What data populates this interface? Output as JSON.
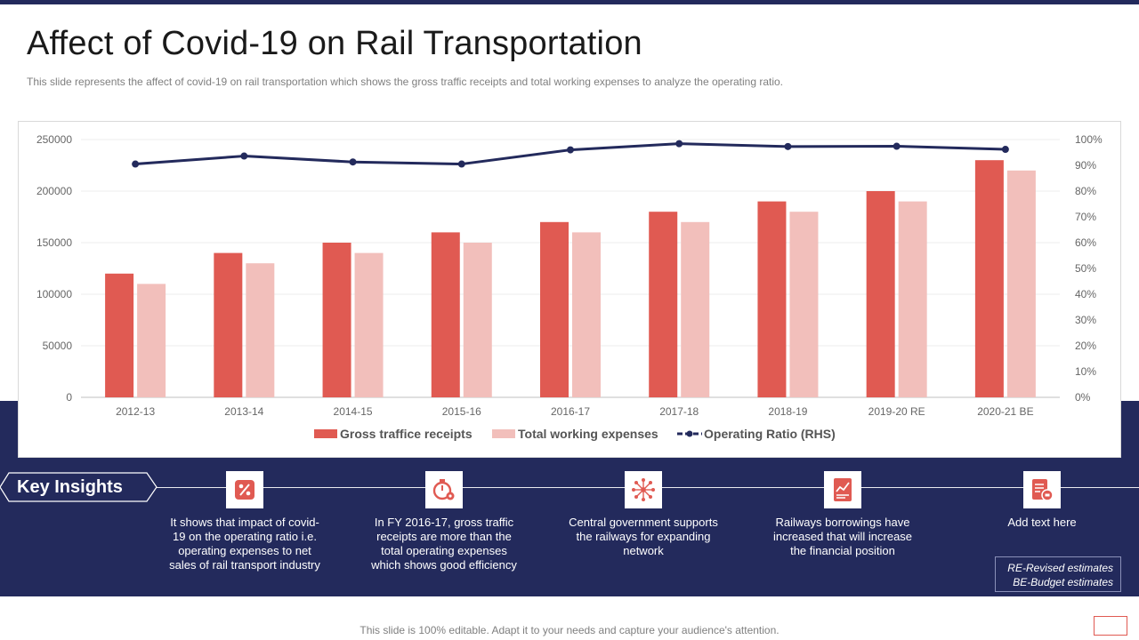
{
  "title": "Affect of Covid-19 on Rail Transportation",
  "subtitle": "This slide represents the affect of covid-19  on rail transportation which shows the gross traffic receipts and total working expenses to analyze the operating ratio.",
  "colors": {
    "navy": "#232a5c",
    "gross": "#e05a52",
    "expenses": "#f2bfbb",
    "ratio": "#232a5c"
  },
  "chart_data": {
    "type": "bar",
    "categories": [
      "2012-13",
      "2013-14",
      "2014-15",
      "2015-16",
      "2016-17",
      "2017-18",
      "2018-19",
      "2019-20 RE",
      "2020-21 BE"
    ],
    "series": [
      {
        "name": "Gross traffice receipts",
        "kind": "bar",
        "axis": "left",
        "values": [
          120000,
          140000,
          150000,
          160000,
          170000,
          180000,
          190000,
          200000,
          230000
        ]
      },
      {
        "name": "Total working expenses",
        "kind": "bar",
        "axis": "left",
        "values": [
          110000,
          130000,
          140000,
          150000,
          160000,
          170000,
          180000,
          190000,
          220000
        ]
      },
      {
        "name": "Operating Ratio (RHS)",
        "kind": "line",
        "axis": "right",
        "values": [
          90.5,
          93.6,
          91.3,
          90.5,
          96.0,
          98.4,
          97.3,
          97.4,
          96.2
        ]
      }
    ],
    "y_left": {
      "min": 0,
      "max": 250000,
      "ticks": [
        "0",
        "50000",
        "100000",
        "150000",
        "200000",
        "250000"
      ]
    },
    "y_right": {
      "min": 0,
      "max": 100,
      "ticks": [
        "0%",
        "10%",
        "20%",
        "30%",
        "40%",
        "50%",
        "60%",
        "70%",
        "80%",
        "90%",
        "100%"
      ]
    },
    "legend_position": "bottom",
    "grid": true
  },
  "key_insights": {
    "label": "Key Insights",
    "items": [
      {
        "icon": "percent-icon",
        "text": "It shows that impact of covid-19  on the operating ratio i.e. operating expenses to net sales of rail transport industry"
      },
      {
        "icon": "timer-gear-icon",
        "text": "In FY 2016-17, gross traffic receipts are more than the total operating expenses which shows good efficiency"
      },
      {
        "icon": "network-people-icon",
        "text": "Central government  supports the railways for expanding network"
      },
      {
        "icon": "financial-report-icon",
        "text": "Railways borrowings have increased that will increase the financial position"
      },
      {
        "icon": "finance-document-icon",
        "text": "Add text here"
      }
    ]
  },
  "notes": [
    "RE-Revised estimates",
    "BE-Budget estimates"
  ],
  "footer": "This slide is 100% editable. Adapt it to your needs and capture your audience's attention."
}
